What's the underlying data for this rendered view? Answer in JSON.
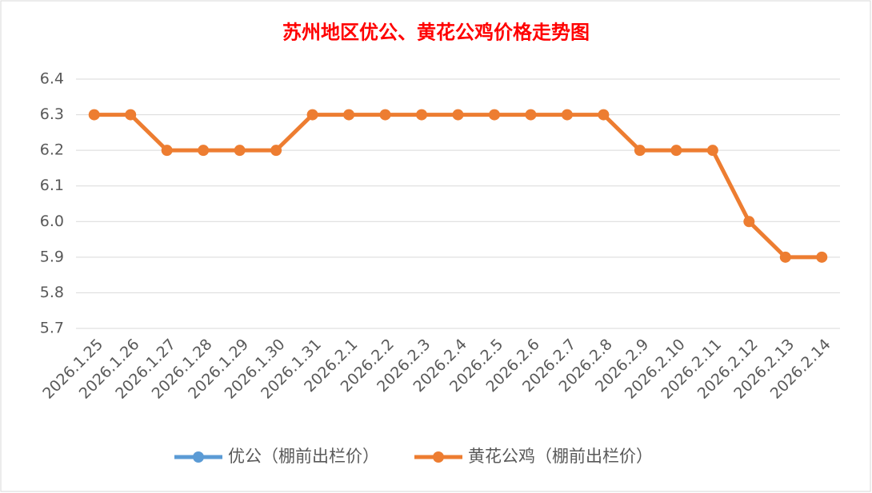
{
  "chart_data": {
    "type": "line",
    "title": "苏州地区优公、黄花公鸡价格走势图",
    "categories": [
      "2026.1.25",
      "2026.1.26",
      "2026.1.27",
      "2026.1.28",
      "2026.1.29",
      "2026.1.30",
      "2026.1.31",
      "2026.2.1",
      "2026.2.2",
      "2026.2.3",
      "2026.2.4",
      "2026.2.5",
      "2026.2.6",
      "2026.2.7",
      "2026.2.8",
      "2026.2.9",
      "2026.2.10",
      "2026.2.11",
      "2026.2.12",
      "2026.2.13",
      "2026.2.14"
    ],
    "series": [
      {
        "name": "优公（棚前出栏价）",
        "color": "#5b9bd5",
        "values": [
          null,
          null,
          null,
          null,
          null,
          null,
          null,
          null,
          null,
          null,
          null,
          null,
          null,
          null,
          null,
          null,
          null,
          null,
          null,
          null,
          null
        ]
      },
      {
        "name": "黄花公鸡（棚前出栏价）",
        "color": "#ed7d31",
        "values": [
          6.3,
          6.3,
          6.2,
          6.2,
          6.2,
          6.2,
          6.3,
          6.3,
          6.3,
          6.3,
          6.3,
          6.3,
          6.3,
          6.3,
          6.3,
          6.2,
          6.2,
          6.2,
          6.0,
          5.9,
          5.9
        ]
      }
    ],
    "ylim": [
      5.7,
      6.4
    ],
    "yticks": [
      5.7,
      5.8,
      5.9,
      {
        "value": 6,
        "label": "6.0"
      },
      6.1,
      6.2,
      6.3,
      6.4
    ],
    "grid": true,
    "legend": "bottom",
    "title_color": "#ff0000"
  }
}
